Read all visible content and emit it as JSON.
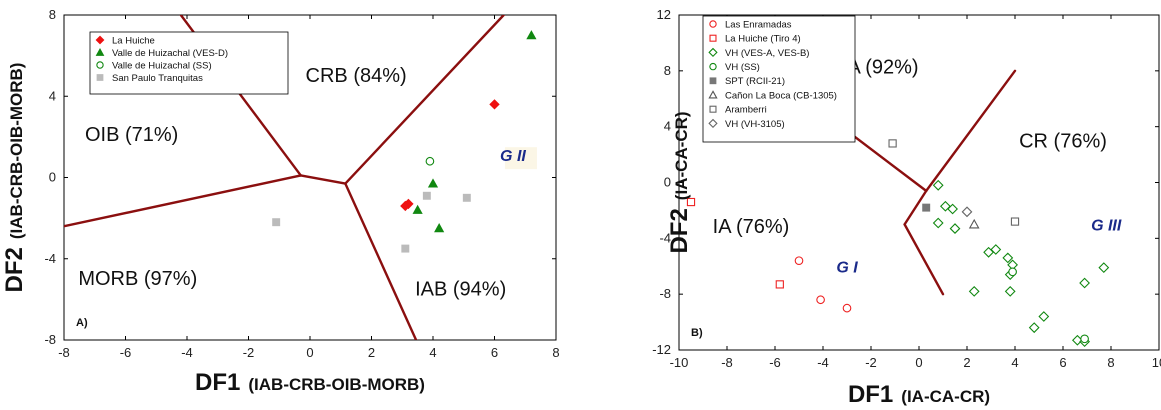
{
  "chart_data": [
    {
      "type": "scatter",
      "panel_label": "A)",
      "xlabel_main": "DF1",
      "xlabel_sub": "(IAB-CRB-OIB-MORB)",
      "ylabel_main": "DF2",
      "ylabel_sub": "(IAB-CRB-OIB-MORB)",
      "xlim": [
        -8,
        8
      ],
      "ylim": [
        -8,
        8
      ],
      "xticks": [
        -8,
        -6,
        -4,
        -2,
        0,
        2,
        4,
        6,
        8
      ],
      "yticks": [
        -8,
        -4,
        0,
        4,
        8
      ],
      "legend_position": "top-left",
      "regions": [
        {
          "label": "CRB (84%)",
          "x": 1.5,
          "y": 4.7
        },
        {
          "label": "OIB (71%)",
          "x": -5.8,
          "y": 1.8
        },
        {
          "label": "MORB (97%)",
          "x": -5.6,
          "y": -5.3
        },
        {
          "label": "IAB (94%)",
          "x": 4.9,
          "y": -5.8
        }
      ],
      "group_label": {
        "text": "G II",
        "x": 6.6,
        "y": 1.1
      },
      "boundaries": [
        [
          [
            -4.2,
            8
          ],
          [
            -0.3,
            0.1
          ]
        ],
        [
          [
            -8,
            -2.4
          ],
          [
            -0.3,
            0.1
          ]
        ],
        [
          [
            -0.3,
            0.1
          ],
          [
            1.15,
            -0.3
          ]
        ],
        [
          [
            1.15,
            -0.3
          ],
          [
            6.3,
            8
          ]
        ],
        [
          [
            1.15,
            -0.3
          ],
          [
            3.45,
            -8
          ]
        ]
      ],
      "series": [
        {
          "name": "La Huiche",
          "marker": "diamond",
          "color": "#ee1111",
          "filled": true,
          "points": [
            [
              6.0,
              3.6
            ],
            [
              3.2,
              -1.3
            ],
            [
              3.1,
              -1.4
            ]
          ]
        },
        {
          "name": "Valle de Huizachal (VES-D)",
          "marker": "triangle",
          "color": "#118811",
          "filled": true,
          "points": [
            [
              7.2,
              7.0
            ],
            [
              4.0,
              -0.3
            ],
            [
              3.5,
              -1.6
            ],
            [
              4.2,
              -2.5
            ]
          ]
        },
        {
          "name": "Valle de Huizachal (SS)",
          "marker": "circle",
          "color": "#118811",
          "filled": false,
          "points": [
            [
              3.9,
              0.8
            ]
          ]
        },
        {
          "name": "San Paulo Tranquitas",
          "marker": "square",
          "color": "#bbbbbb",
          "filled": true,
          "points": [
            [
              -1.1,
              -2.2
            ],
            [
              3.8,
              -0.9
            ],
            [
              5.1,
              -1.0
            ],
            [
              3.1,
              -3.5
            ]
          ]
        }
      ]
    },
    {
      "type": "scatter",
      "panel_label": "B)",
      "xlabel_main": "DF1",
      "xlabel_sub": "(IA-CA-CR)",
      "ylabel_main": "DF2",
      "ylabel_sub": "(IA-CA-CR)",
      "xlim": [
        -10,
        10
      ],
      "ylim": [
        -12,
        12
      ],
      "xticks": [
        -10,
        -8,
        -6,
        -4,
        -2,
        0,
        2,
        4,
        6,
        8,
        10
      ],
      "yticks": [
        -12,
        -8,
        -4,
        0,
        4,
        8,
        12
      ],
      "legend_position": "top-left",
      "regions": [
        {
          "label": "CA (92%)",
          "x": -1.8,
          "y": 7.8
        },
        {
          "label": "CR (76%)",
          "x": 6.0,
          "y": 2.5
        },
        {
          "label": "IA (76%)",
          "x": -7.0,
          "y": -3.6
        }
      ],
      "group_labels": [
        {
          "text": "G I",
          "x": -3.0,
          "y": -6.0
        },
        {
          "text": "G III",
          "x": 7.8,
          "y": -3.0
        }
      ],
      "boundaries": [
        [
          [
            -4.0,
            5.0
          ],
          [
            0.3,
            -0.6
          ]
        ],
        [
          [
            0.3,
            -0.6
          ],
          [
            4.0,
            8.0
          ]
        ],
        [
          [
            0.3,
            -0.6
          ],
          [
            -0.6,
            -3.0
          ]
        ],
        [
          [
            -0.6,
            -3.0
          ],
          [
            1.0,
            -8.0
          ]
        ]
      ],
      "series": [
        {
          "name": "Las Enramadas",
          "marker": "circle",
          "color": "#ee2222",
          "filled": false,
          "points": [
            [
              -5.0,
              -5.6
            ],
            [
              -4.1,
              -8.4
            ],
            [
              -3.0,
              -9.0
            ]
          ]
        },
        {
          "name": "La Huiche (Tiro 4)",
          "marker": "square",
          "color": "#ee2222",
          "filled": false,
          "points": [
            [
              -9.5,
              -1.4
            ],
            [
              -5.8,
              -7.3
            ]
          ]
        },
        {
          "name": "VH (VES-A, VES-B)",
          "marker": "diamond",
          "color": "#118811",
          "filled": false,
          "points": [
            [
              0.8,
              -0.2
            ],
            [
              1.1,
              -1.7
            ],
            [
              1.4,
              -1.9
            ],
            [
              0.8,
              -2.9
            ],
            [
              1.5,
              -3.3
            ],
            [
              2.9,
              -5.0
            ],
            [
              3.2,
              -4.8
            ],
            [
              3.7,
              -5.4
            ],
            [
              3.9,
              -5.9
            ],
            [
              3.8,
              -6.6
            ],
            [
              3.8,
              -7.8
            ],
            [
              2.3,
              -7.8
            ],
            [
              6.9,
              -7.2
            ],
            [
              7.7,
              -6.1
            ],
            [
              5.2,
              -9.6
            ],
            [
              4.8,
              -10.4
            ],
            [
              6.6,
              -11.3
            ],
            [
              6.9,
              -11.4
            ]
          ]
        },
        {
          "name": "VH (SS)",
          "marker": "circle",
          "color": "#118811",
          "filled": false,
          "points": [
            [
              3.9,
              -6.4
            ],
            [
              6.9,
              -11.2
            ]
          ]
        },
        {
          "name": "SPT (RCII-21)",
          "marker": "square",
          "color": "#777777",
          "filled": true,
          "points": [
            [
              0.3,
              -1.8
            ]
          ]
        },
        {
          "name": "Cañon La Boca (CB-1305)",
          "marker": "triangle",
          "color": "#555555",
          "filled": false,
          "points": [
            [
              2.3,
              -3.0
            ]
          ]
        },
        {
          "name": "Aramberri",
          "marker": "square",
          "color": "#666666",
          "filled": false,
          "points": [
            [
              -1.1,
              2.8
            ],
            [
              4.0,
              -2.8
            ]
          ]
        },
        {
          "name": "VH (VH-3105)",
          "marker": "diamond",
          "color": "#666666",
          "filled": false,
          "points": [
            [
              2.0,
              -2.1
            ]
          ]
        }
      ]
    }
  ]
}
